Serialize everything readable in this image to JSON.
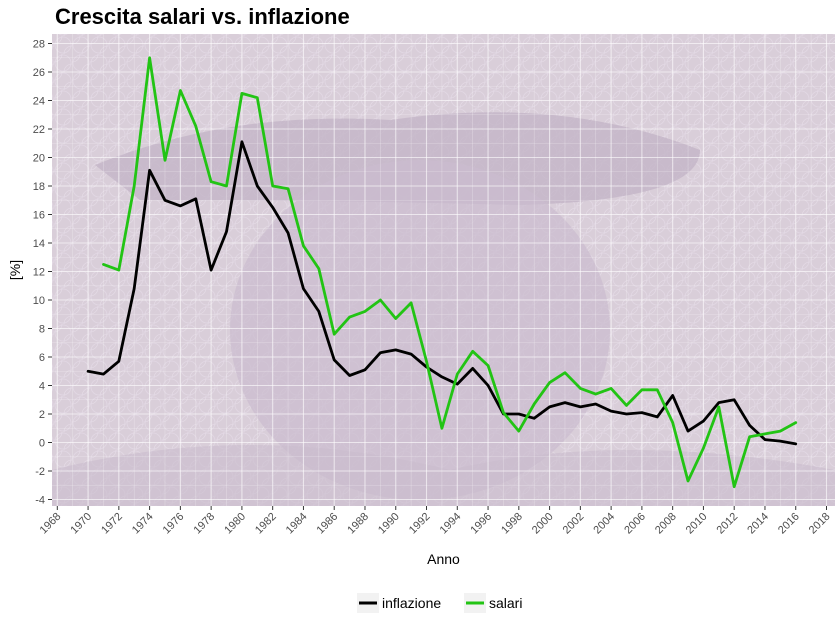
{
  "chart_data": {
    "type": "line",
    "title": "Crescita salari vs. inflazione",
    "xlabel": "Anno",
    "ylabel": "[%]",
    "xlim": [
      1968,
      2018
    ],
    "ylim": [
      -4,
      28
    ],
    "xticks": [
      1968,
      1970,
      1972,
      1974,
      1976,
      1978,
      1980,
      1982,
      1984,
      1986,
      1988,
      1990,
      1992,
      1994,
      1996,
      1998,
      2000,
      2002,
      2004,
      2006,
      2008,
      2010,
      2012,
      2014,
      2016,
      2018
    ],
    "yticks": [
      -4,
      -2,
      0,
      2,
      4,
      6,
      8,
      10,
      12,
      14,
      16,
      18,
      20,
      22,
      24,
      26,
      28
    ],
    "grid": true,
    "legend_position": "bottom",
    "series": [
      {
        "name": "inflazione",
        "color": "#000000",
        "x": [
          1970,
          1971,
          1972,
          1973,
          1974,
          1975,
          1976,
          1977,
          1978,
          1979,
          1980,
          1981,
          1982,
          1983,
          1984,
          1985,
          1986,
          1987,
          1988,
          1989,
          1990,
          1991,
          1992,
          1993,
          1994,
          1995,
          1996,
          1997,
          1998,
          1999,
          2000,
          2001,
          2002,
          2003,
          2004,
          2005,
          2006,
          2007,
          2008,
          2009,
          2010,
          2011,
          2012,
          2013,
          2014,
          2015,
          2016
        ],
        "values": [
          5.0,
          4.8,
          5.7,
          10.8,
          19.1,
          17.0,
          16.6,
          17.1,
          12.1,
          14.8,
          21.1,
          18.0,
          16.5,
          14.7,
          10.8,
          9.2,
          5.8,
          4.7,
          5.1,
          6.3,
          6.5,
          6.2,
          5.3,
          4.6,
          4.1,
          5.2,
          4.0,
          2.0,
          2.0,
          1.7,
          2.5,
          2.8,
          2.5,
          2.7,
          2.2,
          2.0,
          2.1,
          1.8,
          3.3,
          0.8,
          1.5,
          2.8,
          3.0,
          1.2,
          0.2,
          0.1,
          -0.1
        ]
      },
      {
        "name": "salari",
        "color": "#22c414",
        "x": [
          1971,
          1972,
          1973,
          1974,
          1975,
          1976,
          1977,
          1978,
          1979,
          1980,
          1981,
          1982,
          1983,
          1984,
          1985,
          1986,
          1987,
          1988,
          1989,
          1990,
          1991,
          1992,
          1993,
          1994,
          1995,
          1996,
          1997,
          1998,
          1999,
          2000,
          2001,
          2002,
          2003,
          2004,
          2005,
          2006,
          2007,
          2008,
          2009,
          2010,
          2011,
          2012,
          2013,
          2014,
          2015,
          2016
        ],
        "values": [
          12.5,
          12.1,
          18.0,
          27.0,
          19.8,
          24.7,
          22.2,
          18.3,
          18.0,
          24.5,
          24.2,
          18.0,
          17.8,
          13.8,
          12.2,
          7.6,
          8.8,
          9.2,
          10.0,
          8.7,
          9.8,
          5.7,
          1.0,
          4.8,
          6.4,
          5.4,
          2.1,
          0.8,
          2.7,
          4.2,
          4.9,
          3.8,
          3.4,
          3.8,
          2.6,
          3.7,
          3.7,
          1.4,
          -2.7,
          -0.4,
          2.5,
          -3.1,
          0.4,
          0.6,
          0.8,
          1.4
        ]
      }
    ]
  }
}
